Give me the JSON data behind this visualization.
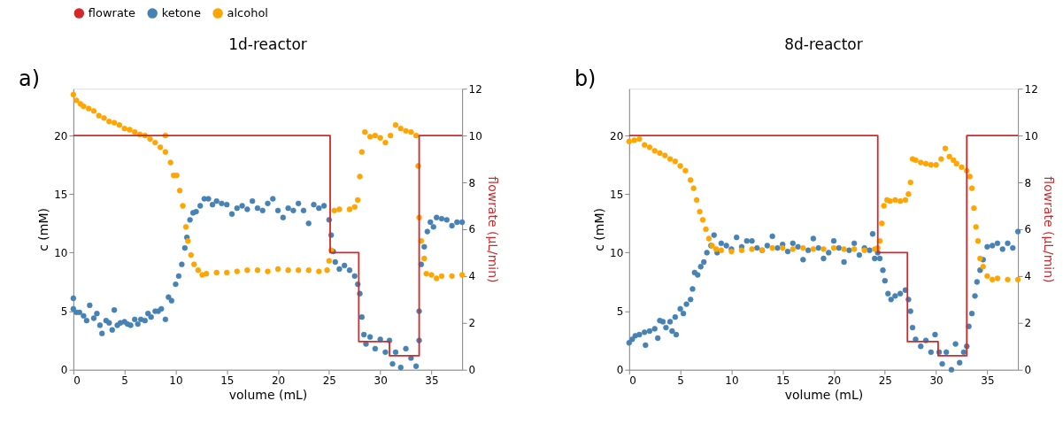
{
  "chart_data": [
    {
      "type": "scatter",
      "title": "1d-reactor",
      "annotations": [
        "a)"
      ],
      "xlabel": "volume (mL)",
      "ylabel": "c (mM)",
      "y2label": "flowrate (µL/min)",
      "xlim": [
        0,
        38
      ],
      "xticks": [
        0,
        5,
        10,
        15,
        20,
        25,
        30,
        35
      ],
      "ylim": [
        0,
        24
      ],
      "yticks": [
        0,
        5,
        10,
        15,
        20
      ],
      "y2lim": [
        0,
        12
      ],
      "y2ticks": [
        0,
        2,
        4,
        6,
        8,
        10,
        12
      ],
      "legend": "top",
      "grid": false,
      "series": [
        {
          "name": "flowrate",
          "type": "step",
          "axis": "y2",
          "color": "#d62728",
          "x": [
            0,
            25.1,
            27.9,
            30.9,
            33.8,
            38
          ],
          "values": [
            10,
            5,
            1.2,
            0.6,
            10,
            10
          ]
        },
        {
          "name": "ketone",
          "color": "#4682b4",
          "x": [
            0,
            0,
            0.3,
            0.6,
            1,
            1.3,
            1.6,
            2,
            2.3,
            2.6,
            2.8,
            3.2,
            3.5,
            3.8,
            4,
            4.3,
            4.6,
            5,
            5.3,
            5.6,
            6,
            6.3,
            6.6,
            7,
            7.3,
            7.6,
            8,
            8.3,
            8.6,
            9,
            9.3,
            9.6,
            10,
            10.3,
            10.6,
            10.9,
            11.1,
            11.4,
            11.7,
            12,
            12.4,
            12.8,
            13.2,
            13.6,
            14,
            14.5,
            15,
            15.5,
            16,
            16.5,
            17,
            17.5,
            18,
            18.5,
            19,
            19.5,
            20,
            20.5,
            21,
            21.5,
            22,
            22.5,
            23,
            23.5,
            24,
            24.5,
            25,
            25.2,
            25.4,
            25.6,
            26,
            26.5,
            27,
            27.5,
            27.8,
            28,
            28.2,
            28.4,
            28.6,
            29,
            29.5,
            30,
            30.5,
            30.9,
            31.2,
            31.5,
            32,
            32.5,
            33,
            33.5,
            33.8,
            33.8,
            34,
            34.3,
            34.6,
            34.9,
            35.2,
            35.5,
            36,
            36.5,
            37,
            37.5,
            38
          ],
          "values": [
            6.1,
            5.2,
            4.9,
            4.9,
            4.6,
            4.2,
            5.5,
            4.4,
            4.8,
            3.8,
            3.1,
            4.2,
            4,
            3.4,
            5.1,
            3.8,
            4,
            4.1,
            3.9,
            3.8,
            4.3,
            3.9,
            4.3,
            4.2,
            4.8,
            4.5,
            5,
            5,
            5.2,
            4.3,
            6.2,
            5.9,
            7.3,
            8,
            9,
            10.4,
            11.3,
            12.8,
            13.4,
            13.5,
            14,
            14.6,
            14.6,
            14.1,
            14.4,
            14.2,
            14.1,
            13.3,
            13.8,
            14,
            13.7,
            14.4,
            13.8,
            13.6,
            14.2,
            14.6,
            13.6,
            13,
            13.8,
            13.6,
            14.2,
            13.6,
            12.5,
            14.1,
            13.8,
            14,
            12.8,
            11.5,
            10.1,
            9.2,
            8.6,
            8.9,
            8.5,
            8,
            7.3,
            6.5,
            4.5,
            3,
            2.2,
            2.8,
            1.8,
            2.6,
            1.5,
            2.5,
            0.5,
            1.5,
            0.2,
            1.8,
            1,
            0.3,
            2.5,
            5,
            9,
            10.5,
            11.8,
            12.6,
            12.2,
            13,
            12.9,
            12.8,
            12.3,
            12.6,
            12.6
          ]
        },
        {
          "name": "alcohol",
          "color": "#ffa500",
          "x": [
            0,
            0.3,
            0.7,
            1,
            1.5,
            2,
            2.5,
            3,
            3.5,
            4,
            4.5,
            5,
            5.5,
            6,
            6.5,
            7,
            7.5,
            8,
            8.5,
            9,
            9,
            9.5,
            9.8,
            10.1,
            10.4,
            10.7,
            11,
            11.2,
            11.5,
            11.8,
            12.2,
            12.6,
            13,
            14,
            15,
            16,
            17,
            18,
            19,
            20,
            21,
            22,
            23,
            24,
            24.8,
            25,
            25.2,
            25.5,
            26,
            27,
            27.5,
            27.8,
            28,
            28.2,
            28.5,
            29,
            29.5,
            30,
            30.5,
            31,
            31.5,
            32,
            32.5,
            33,
            33.5,
            33.7,
            33.8,
            34,
            34.3,
            34.5,
            35,
            35.5,
            36,
            37,
            38
          ],
          "values": [
            23.5,
            23,
            22.7,
            22.5,
            22.3,
            22.1,
            21.7,
            21.5,
            21.2,
            21.1,
            20.9,
            20.6,
            20.5,
            20.3,
            20.1,
            20,
            19.7,
            19.4,
            19,
            20,
            18.6,
            17.7,
            16.6,
            16.6,
            15.3,
            14,
            12.2,
            11,
            9.8,
            9,
            8.5,
            8.1,
            8.2,
            8.3,
            8.3,
            8.4,
            8.5,
            8.5,
            8.4,
            8.6,
            8.5,
            8.5,
            8.5,
            8.4,
            8.5,
            9.3,
            10.2,
            13.6,
            13.7,
            13.7,
            13.9,
            14.5,
            16.5,
            18.6,
            20.3,
            19.9,
            20,
            19.8,
            19.4,
            20,
            20.9,
            20.6,
            20.4,
            20.3,
            20,
            17.4,
            13,
            11,
            9.5,
            8.2,
            8.1,
            7.8,
            8,
            8,
            8.1
          ]
        }
      ]
    },
    {
      "type": "scatter",
      "title": "8d-reactor",
      "annotations": [
        "b)"
      ],
      "xlabel": "volume (mL)",
      "ylabel": "c (mM)",
      "y2label": "flowrate (µL/min)",
      "xlim": [
        0,
        38
      ],
      "xticks": [
        0,
        5,
        10,
        15,
        20,
        25,
        30,
        35
      ],
      "ylim": [
        0,
        24
      ],
      "yticks": [
        0,
        5,
        10,
        15,
        20
      ],
      "y2lim": [
        0,
        12
      ],
      "y2ticks": [
        0,
        2,
        4,
        6,
        8,
        10,
        12
      ],
      "legend": "top",
      "grid": false,
      "series": [
        {
          "name": "flowrate",
          "type": "step",
          "axis": "y2",
          "color": "#d62728",
          "x": [
            0,
            24.3,
            27.2,
            30.2,
            33.0,
            38
          ],
          "values": [
            10,
            5,
            1.2,
            0.6,
            10,
            10
          ]
        },
        {
          "name": "ketone",
          "color": "#4682b4",
          "x": [
            0,
            0.3,
            0.6,
            1,
            1.5,
            1.6,
            2,
            2.5,
            2.8,
            3,
            3.3,
            3.6,
            4,
            4.2,
            4.5,
            4.6,
            5,
            5.3,
            5.6,
            6,
            6.2,
            6.4,
            6.7,
            7,
            7.3,
            7.6,
            8,
            8.3,
            8.6,
            9,
            9.5,
            10,
            10.5,
            11,
            11.5,
            12,
            12.5,
            13,
            13.5,
            14,
            14.5,
            15,
            15.5,
            16,
            16.5,
            17,
            17.5,
            18,
            18.5,
            19,
            19.5,
            20,
            20.5,
            21,
            21.5,
            22,
            22.5,
            23,
            23.5,
            23.8,
            24,
            24.3,
            24.5,
            24.8,
            25,
            25.3,
            25.6,
            26,
            26.5,
            27,
            27.3,
            27.5,
            27.7,
            28,
            28.5,
            29,
            29.5,
            29.9,
            30.3,
            30.6,
            31,
            31.5,
            31.9,
            32.3,
            32.7,
            33,
            33.2,
            33.5,
            33.8,
            34,
            34.3,
            34.6,
            35,
            35.5,
            36,
            36.5,
            37,
            37.5,
            38
          ],
          "values": [
            2.3,
            2.6,
            2.9,
            3,
            3.2,
            2.1,
            3.3,
            3.5,
            2.7,
            4.2,
            4.1,
            3.6,
            4.1,
            3.3,
            4.5,
            3,
            5.2,
            4.8,
            5.6,
            6,
            6.9,
            8.3,
            8.1,
            8.8,
            9.2,
            10,
            10.6,
            11.5,
            10,
            10.8,
            10.6,
            10.3,
            11.3,
            10.5,
            11,
            11,
            10.4,
            10.2,
            10.6,
            11.4,
            10.4,
            10.7,
            10.1,
            10.8,
            10.5,
            9.4,
            10.2,
            11.2,
            10.4,
            9.5,
            10,
            11,
            10.4,
            9.2,
            10.2,
            10.8,
            9.8,
            10.4,
            10.2,
            11.6,
            9.5,
            10,
            9.5,
            8.5,
            7.6,
            6.5,
            6,
            6.3,
            6.5,
            6.8,
            6,
            5,
            3.6,
            2.6,
            2,
            2.5,
            1.5,
            3,
            1.5,
            0.5,
            1.5,
            0,
            2.2,
            0.6,
            1.5,
            2,
            3.7,
            4.8,
            6.3,
            7.5,
            8.5,
            9.4,
            10.5,
            10.6,
            10.8,
            10.3,
            10.8,
            10.4,
            11.8
          ]
        },
        {
          "name": "alcohol",
          "color": "#ffa500",
          "x": [
            0,
            0.5,
            1,
            1.5,
            2,
            2.5,
            3,
            3.5,
            4,
            4.5,
            5,
            5.5,
            6,
            6.3,
            6.6,
            6.9,
            7.2,
            7.5,
            7.8,
            8.1,
            8.5,
            9,
            10,
            11,
            12,
            13,
            14,
            15,
            16,
            17,
            18,
            19,
            20,
            21,
            22,
            23,
            24,
            24.3,
            24.5,
            24.7,
            24.9,
            25.2,
            25.5,
            26,
            26.5,
            27,
            27.3,
            27.5,
            27.7,
            28,
            28.5,
            29,
            29.5,
            30,
            30.5,
            30.9,
            31.3,
            31.7,
            32,
            32.5,
            33,
            33.3,
            33.5,
            33.7,
            33.9,
            34.1,
            34.3,
            34.6,
            35,
            35.5,
            36,
            37,
            38
          ],
          "values": [
            19.5,
            19.6,
            19.7,
            19.2,
            19,
            18.7,
            18.5,
            18.3,
            18,
            17.8,
            17.4,
            17,
            16.2,
            15.5,
            14.5,
            13.5,
            12.8,
            12,
            11.2,
            10.6,
            10.3,
            10.2,
            10.1,
            10.2,
            10.3,
            10.2,
            10.4,
            10.4,
            10.3,
            10.4,
            10.3,
            10.3,
            10.4,
            10.3,
            10.3,
            10.2,
            10.3,
            10.4,
            11,
            12.5,
            14,
            14.5,
            14.4,
            14.5,
            14.4,
            14.5,
            15,
            16,
            18,
            17.9,
            17.7,
            17.6,
            17.5,
            17.5,
            18,
            18.9,
            18.2,
            17.9,
            17.6,
            17.3,
            17,
            16.5,
            15.5,
            13.8,
            12.2,
            11,
            9.5,
            8.8,
            8,
            7.7,
            7.8,
            7.7,
            7.7
          ]
        }
      ]
    }
  ]
}
